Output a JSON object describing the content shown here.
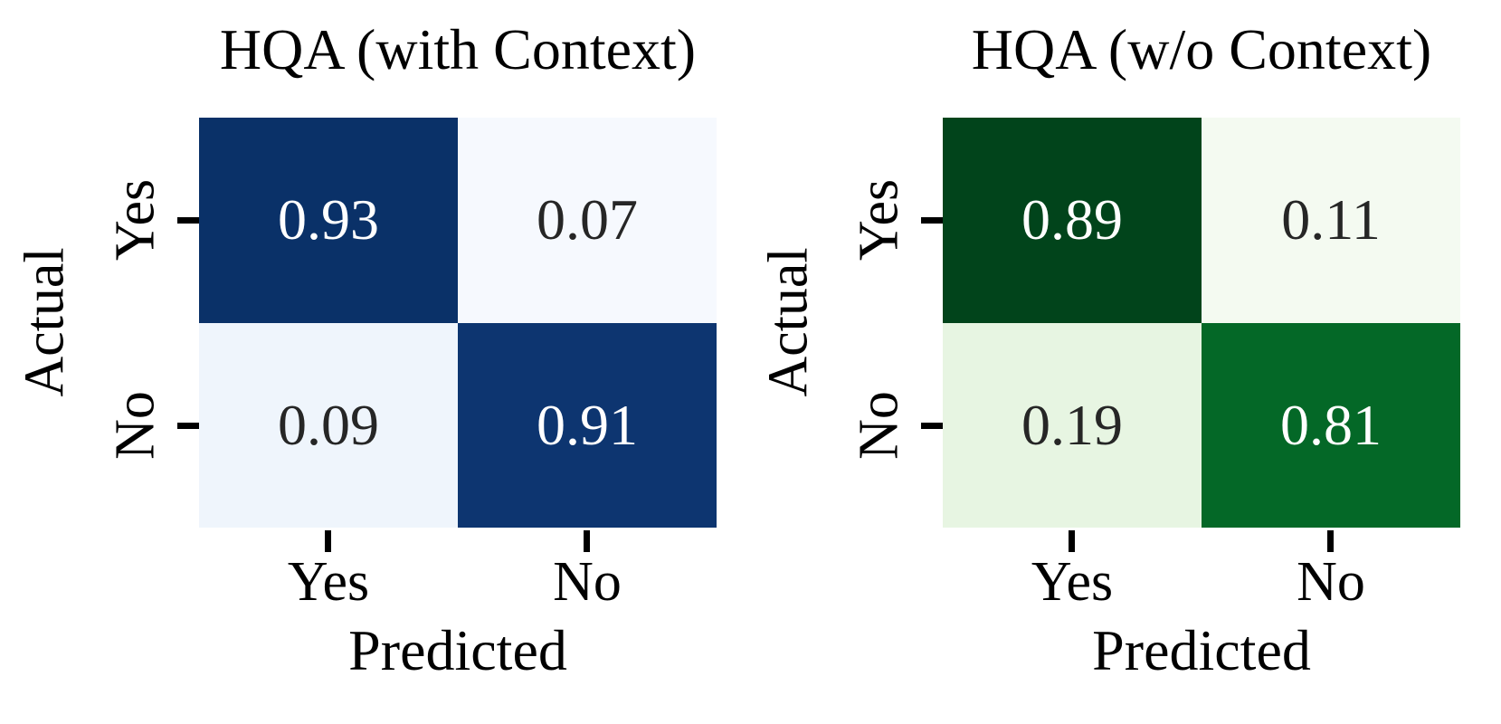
{
  "figure": {
    "background": "#ffffff",
    "text_color": "#000000",
    "tick_color": "#000000"
  },
  "chart_data": [
    {
      "type": "heatmap",
      "title": "HQA (with Context)",
      "xlabel": "Predicted",
      "ylabel": "Actual",
      "x_categories": [
        "Yes",
        "No"
      ],
      "y_categories": [
        "Yes",
        "No"
      ],
      "rows": [
        [
          0.93,
          0.07
        ],
        [
          0.09,
          0.91
        ]
      ],
      "cell_text": [
        [
          "0.93",
          "0.07"
        ],
        [
          "0.09",
          "0.91"
        ]
      ],
      "colormap": "Blues",
      "value_range": [
        0,
        1
      ],
      "legend": "none",
      "grid": false,
      "cell_colors": [
        [
          "#0a3168",
          "#f6f9fe"
        ],
        [
          "#eff5fc",
          "#0d3570"
        ]
      ],
      "cell_text_colors": [
        [
          "#ffffff",
          "#262626"
        ],
        [
          "#262626",
          "#ffffff"
        ]
      ]
    },
    {
      "type": "heatmap",
      "title": "HQA (w/o Context)",
      "xlabel": "Predicted",
      "ylabel": "Actual",
      "x_categories": [
        "Yes",
        "No"
      ],
      "y_categories": [
        "Yes",
        "No"
      ],
      "rows": [
        [
          0.89,
          0.11
        ],
        [
          0.19,
          0.81
        ]
      ],
      "cell_text": [
        [
          "0.89",
          "0.11"
        ],
        [
          "0.19",
          "0.81"
        ]
      ],
      "colormap": "Greens",
      "value_range": [
        0,
        1
      ],
      "legend": "none",
      "grid": false,
      "cell_colors": [
        [
          "#01441b",
          "#f4faf1"
        ],
        [
          "#e7f5e2",
          "#046827"
        ]
      ],
      "cell_text_colors": [
        [
          "#ffffff",
          "#262626"
        ],
        [
          "#262626",
          "#ffffff"
        ]
      ]
    }
  ]
}
